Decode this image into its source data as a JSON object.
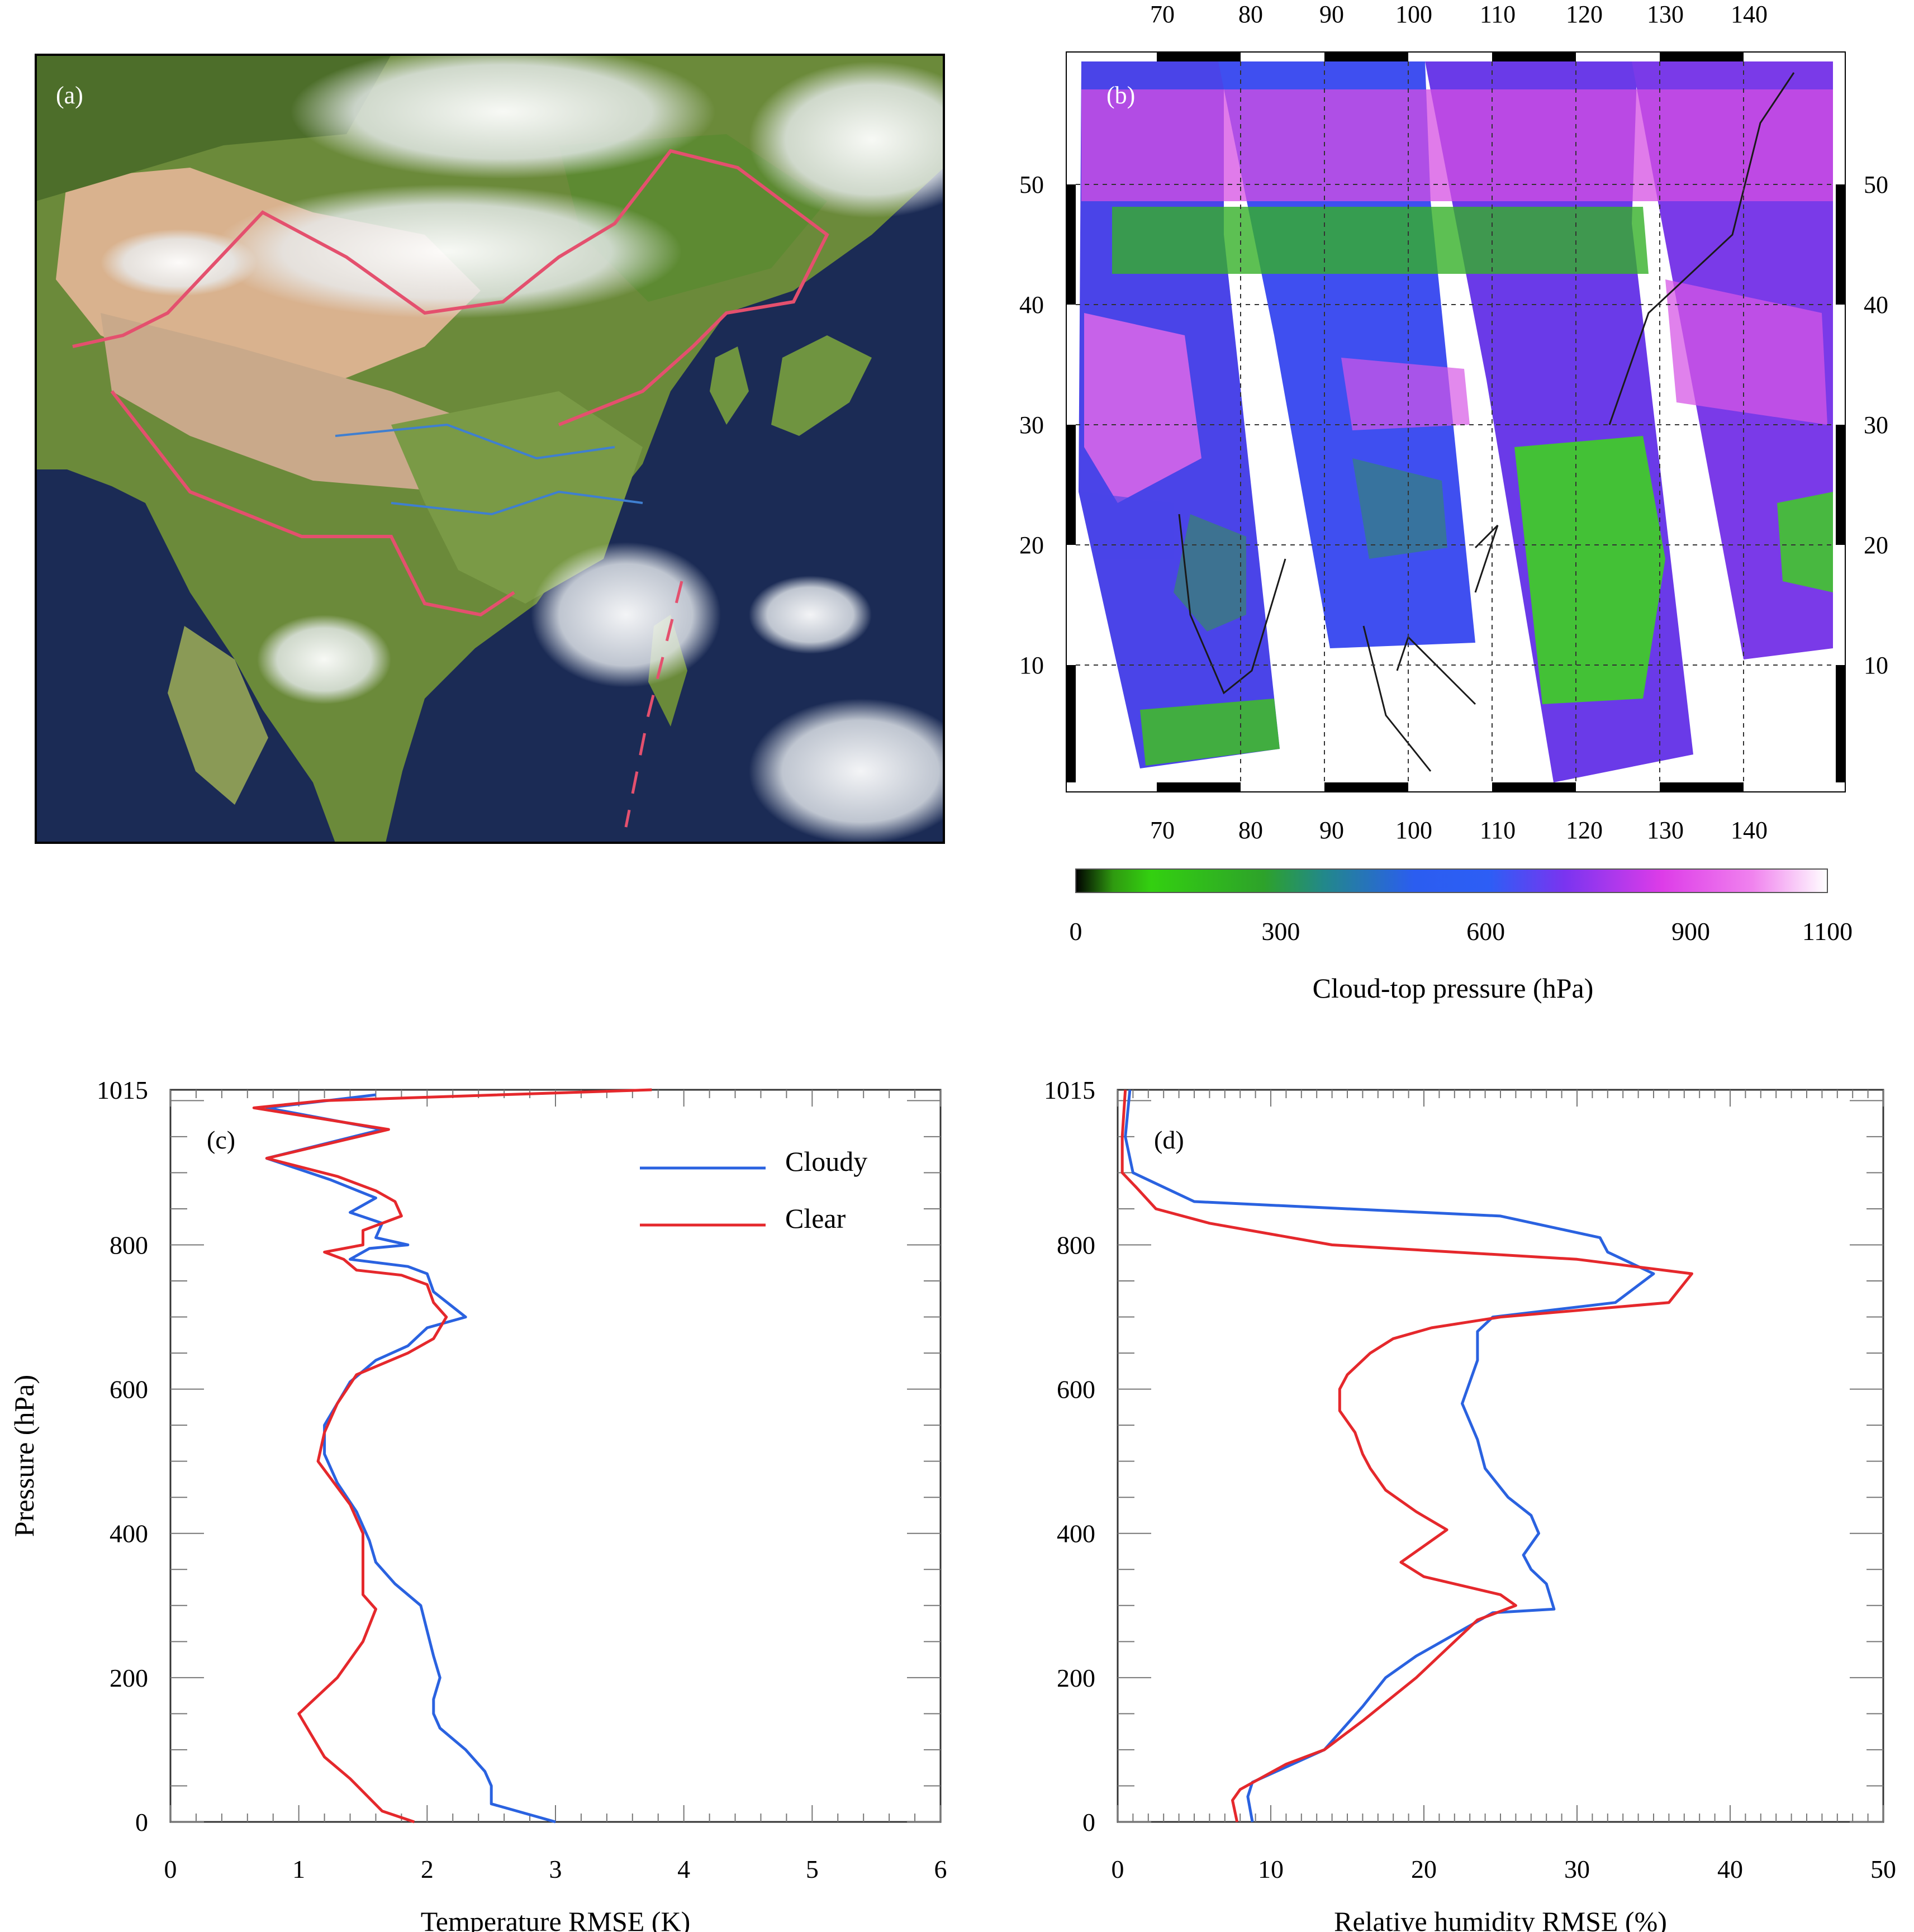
{
  "panels": {
    "a": {
      "label": "(a)"
    },
    "b": {
      "label": "(b)",
      "lon_ticks": [
        "70",
        "80",
        "90",
        "100",
        "110",
        "120",
        "130",
        "140"
      ],
      "lat_ticks": [
        "50",
        "40",
        "30",
        "20",
        "10"
      ],
      "colorbar": {
        "title": "Cloud-top pressure (hPa)",
        "ticks": [
          "0",
          "300",
          "600",
          "900",
          "1100"
        ],
        "range": [
          0,
          1100
        ]
      }
    }
  },
  "chart_data": [
    {
      "type": "line",
      "panel": "(c)",
      "xlabel": "Temperature RMSE (K)",
      "ylabel": "Pressure (hPa)",
      "xlim": [
        0,
        6
      ],
      "ylim": [
        0,
        1015
      ],
      "x_ticks": [
        "0",
        "1",
        "2",
        "3",
        "4",
        "5",
        "6"
      ],
      "y_ticks": [
        "0",
        "200",
        "400",
        "600",
        "800",
        "1015"
      ],
      "legend_position": "top-right",
      "series": [
        {
          "name": "Cloudy",
          "color": "#2a62e0",
          "points": [
            [
              3.0,
              0
            ],
            [
              2.5,
              25
            ],
            [
              2.5,
              50
            ],
            [
              2.45,
              70
            ],
            [
              2.3,
              100
            ],
            [
              2.1,
              130
            ],
            [
              2.05,
              150
            ],
            [
              2.05,
              170
            ],
            [
              2.1,
              200
            ],
            [
              2.05,
              230
            ],
            [
              2.0,
              265
            ],
            [
              1.95,
              300
            ],
            [
              1.75,
              330
            ],
            [
              1.6,
              360
            ],
            [
              1.55,
              390
            ],
            [
              1.45,
              430
            ],
            [
              1.3,
              470
            ],
            [
              1.2,
              510
            ],
            [
              1.2,
              550
            ],
            [
              1.3,
              580
            ],
            [
              1.4,
              610
            ],
            [
              1.6,
              640
            ],
            [
              1.85,
              660
            ],
            [
              2.0,
              685
            ],
            [
              2.3,
              700
            ],
            [
              2.05,
              735
            ],
            [
              2.0,
              760
            ],
            [
              1.85,
              770
            ],
            [
              1.4,
              780
            ],
            [
              1.55,
              795
            ],
            [
              1.85,
              800
            ],
            [
              1.6,
              810
            ],
            [
              1.65,
              830
            ],
            [
              1.4,
              845
            ],
            [
              1.6,
              865
            ],
            [
              1.25,
              890
            ],
            [
              0.75,
              920
            ],
            [
              1.65,
              960
            ],
            [
              0.75,
              990
            ],
            [
              1.6,
              1008
            ]
          ]
        },
        {
          "name": "Clear",
          "color": "#e5282c",
          "points": [
            [
              1.9,
              0
            ],
            [
              1.65,
              15
            ],
            [
              1.4,
              60
            ],
            [
              1.2,
              90
            ],
            [
              1.0,
              150
            ],
            [
              1.3,
              200
            ],
            [
              1.5,
              250
            ],
            [
              1.6,
              295
            ],
            [
              1.5,
              315
            ],
            [
              1.5,
              400
            ],
            [
              1.4,
              440
            ],
            [
              1.15,
              500
            ],
            [
              1.2,
              540
            ],
            [
              1.3,
              580
            ],
            [
              1.45,
              620
            ],
            [
              1.65,
              635
            ],
            [
              1.85,
              650
            ],
            [
              2.05,
              670
            ],
            [
              2.15,
              700
            ],
            [
              2.05,
              720
            ],
            [
              2.0,
              745
            ],
            [
              1.8,
              758
            ],
            [
              1.45,
              765
            ],
            [
              1.35,
              780
            ],
            [
              1.2,
              790
            ],
            [
              1.5,
              800
            ],
            [
              1.5,
              820
            ],
            [
              1.8,
              840
            ],
            [
              1.75,
              860
            ],
            [
              1.6,
              875
            ],
            [
              1.3,
              895
            ],
            [
              0.75,
              920
            ],
            [
              1.7,
              960
            ],
            [
              0.65,
              990
            ],
            [
              1.2,
              1000
            ],
            [
              3.75,
              1015
            ]
          ]
        }
      ]
    },
    {
      "type": "line",
      "panel": "(d)",
      "xlabel": "Relative humidity RMSE (%)",
      "ylabel": "",
      "xlim": [
        0,
        50
      ],
      "ylim": [
        0,
        1015
      ],
      "x_ticks": [
        "0",
        "10",
        "20",
        "30",
        "40",
        "50"
      ],
      "y_ticks": [
        "0",
        "200",
        "400",
        "600",
        "800",
        "1015"
      ],
      "series": [
        {
          "name": "Cloudy",
          "color": "#2a62e0",
          "points": [
            [
              8.8,
              0
            ],
            [
              8.5,
              35
            ],
            [
              8.8,
              55
            ],
            [
              13.5,
              100
            ],
            [
              16.0,
              160
            ],
            [
              17.5,
              200
            ],
            [
              19.5,
              230
            ],
            [
              22.0,
              260
            ],
            [
              24.5,
              290
            ],
            [
              28.5,
              295
            ],
            [
              28.0,
              330
            ],
            [
              27.0,
              350
            ],
            [
              26.5,
              370
            ],
            [
              27.5,
              400
            ],
            [
              27.0,
              425
            ],
            [
              25.5,
              450
            ],
            [
              24.0,
              490
            ],
            [
              23.5,
              530
            ],
            [
              22.5,
              580
            ],
            [
              23.0,
              610
            ],
            [
              23.5,
              640
            ],
            [
              23.5,
              680
            ],
            [
              24.5,
              700
            ],
            [
              32.5,
              720
            ],
            [
              35.0,
              760
            ],
            [
              32.0,
              790
            ],
            [
              31.5,
              810
            ],
            [
              25.0,
              840
            ],
            [
              5.0,
              860
            ],
            [
              1.0,
              900
            ],
            [
              0.5,
              950
            ],
            [
              0.8,
              1015
            ]
          ]
        },
        {
          "name": "Clear",
          "color": "#e5282c",
          "points": [
            [
              7.8,
              0
            ],
            [
              7.5,
              30
            ],
            [
              8.0,
              45
            ],
            [
              11.0,
              80
            ],
            [
              13.5,
              100
            ],
            [
              16.0,
              140
            ],
            [
              19.5,
              200
            ],
            [
              21.5,
              240
            ],
            [
              23.5,
              280
            ],
            [
              26.0,
              300
            ],
            [
              25.0,
              315
            ],
            [
              20.0,
              340
            ],
            [
              18.5,
              360
            ],
            [
              20.5,
              390
            ],
            [
              21.5,
              405
            ],
            [
              19.5,
              430
            ],
            [
              17.5,
              460
            ],
            [
              16.5,
              490
            ],
            [
              16.0,
              510
            ],
            [
              15.5,
              540
            ],
            [
              14.5,
              570
            ],
            [
              14.5,
              600
            ],
            [
              15.0,
              620
            ],
            [
              16.5,
              650
            ],
            [
              18.0,
              670
            ],
            [
              20.5,
              685
            ],
            [
              25.0,
              700
            ],
            [
              36.0,
              720
            ],
            [
              37.5,
              760
            ],
            [
              30.0,
              780
            ],
            [
              14.0,
              800
            ],
            [
              6.0,
              830
            ],
            [
              2.5,
              850
            ],
            [
              1.2,
              880
            ],
            [
              0.3,
              900
            ],
            [
              0.3,
              950
            ],
            [
              0.5,
              1015
            ]
          ]
        }
      ]
    }
  ]
}
